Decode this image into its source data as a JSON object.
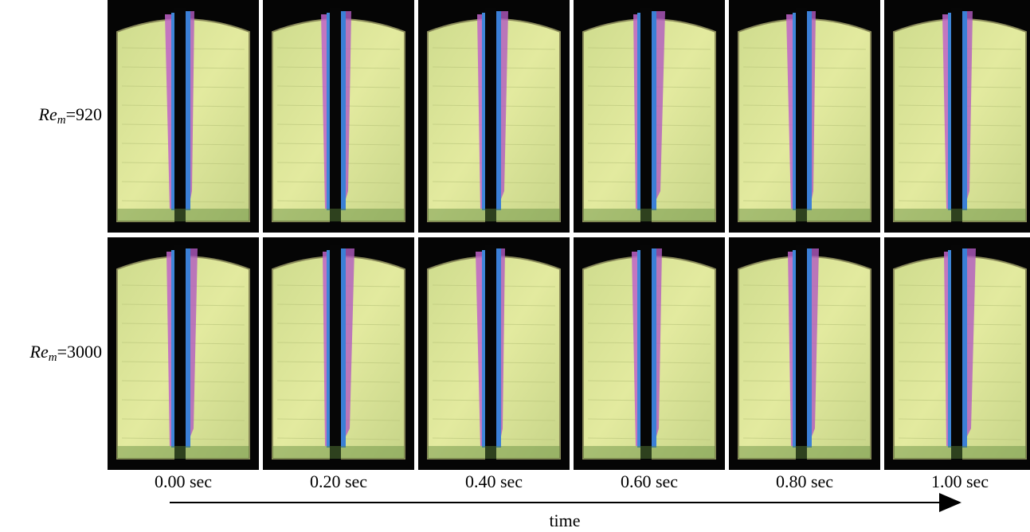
{
  "figure": {
    "rows": [
      {
        "symbol": "Re",
        "subscript": "m",
        "value": "=920"
      },
      {
        "symbol": "Re",
        "subscript": "m",
        "value": "=3000"
      }
    ],
    "columns": [
      "0.00 sec",
      "0.20 sec",
      "0.40 sec",
      "0.60 sec",
      "0.80 sec",
      "1.00 sec"
    ],
    "axis_label": "time"
  }
}
